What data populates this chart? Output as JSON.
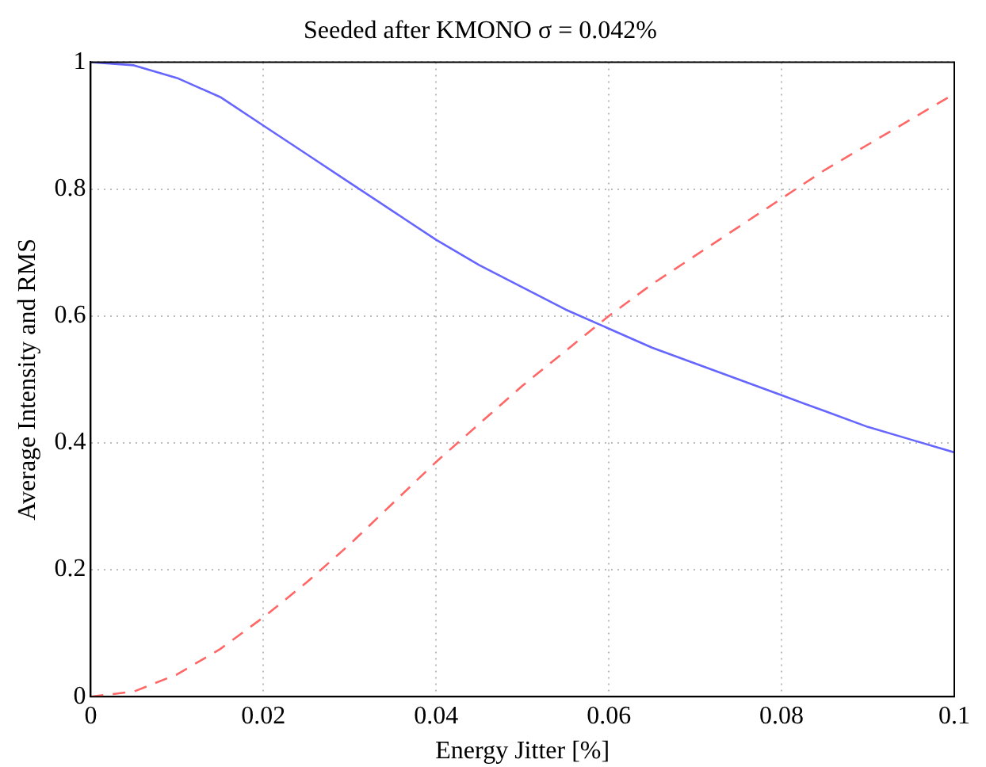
{
  "chart_data": {
    "type": "line",
    "title": "Seeded after KMONO σ = 0.042%",
    "xlabel": "Energy Jitter [%]",
    "ylabel": "Average Intensity and RMS",
    "x": [
      0,
      0.005,
      0.01,
      0.015,
      0.02,
      0.025,
      0.03,
      0.035,
      0.04,
      0.045,
      0.05,
      0.055,
      0.06,
      0.065,
      0.07,
      0.075,
      0.08,
      0.085,
      0.09,
      0.095,
      0.1
    ],
    "series": [
      {
        "color": "#6666ff",
        "line_style": "solid",
        "values": [
          1,
          0.995,
          0.975,
          0.945,
          0.9,
          0.855,
          0.81,
          0.765,
          0.72,
          0.68,
          0.645,
          0.61,
          0.58,
          0.55,
          0.525,
          0.5,
          0.475,
          0.45,
          0.425,
          0.405,
          0.385
        ]
      },
      {
        "color": "#ff6666",
        "line_style": "dashed",
        "values": [
          0,
          0.008,
          0.035,
          0.075,
          0.125,
          0.18,
          0.24,
          0.305,
          0.37,
          0.43,
          0.49,
          0.545,
          0.6,
          0.65,
          0.695,
          0.74,
          0.785,
          0.83,
          0.87,
          0.91,
          0.95
        ]
      }
    ],
    "xlim": [
      0,
      0.1
    ],
    "xticks": [
      0,
      0.02,
      0.04,
      0.06,
      0.08,
      0.1
    ],
    "ylim": [
      0,
      1
    ],
    "yticks": [
      0,
      0.2,
      0.4,
      0.6,
      0.8,
      1
    ],
    "grid": true,
    "legend": false,
    "marker": "none"
  }
}
